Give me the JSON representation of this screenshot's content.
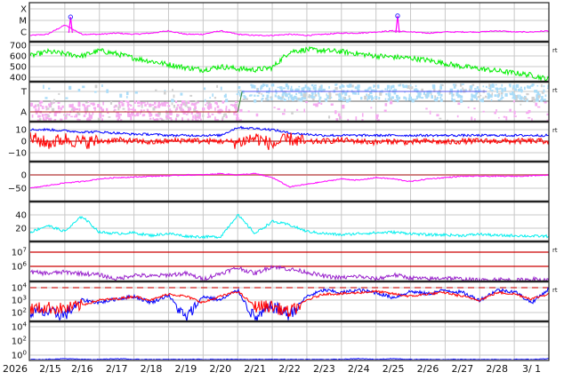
{
  "chart_data": [
    {
      "type": "line",
      "panel": "xray",
      "x_axis": {
        "year_label": "2026",
        "start": "2/15",
        "end": "3/2",
        "day_labels": [
          "2/15",
          "2/16",
          "2/17",
          "2/18",
          "2/19",
          "2/20",
          "2/21",
          "2/22",
          "2/23",
          "2/24",
          "2/25",
          "2/26",
          "2/27",
          "2/28",
          "3/ 1"
        ]
      },
      "yticks": [
        {
          "label": "X",
          "value": -4
        },
        {
          "label": "M",
          "value": -5
        },
        {
          "label": "C",
          "value": -6
        }
      ],
      "sample_interval_hours": 12,
      "series": [
        {
          "color": "#ff00ff",
          "values": [
            -6.3,
            -6.2,
            -5.4,
            -6.2,
            -6.2,
            -6.1,
            -6.2,
            -6.1,
            -5.9,
            -6.2,
            -6.2,
            -5.9,
            -6.2,
            -6.3,
            -6.3,
            -6.2,
            -6.3,
            -6.2,
            -6.1,
            -6.1,
            -6.0,
            -5.9,
            -6.0,
            -6.1,
            -6.0,
            -6.0,
            -6.0,
            -5.9,
            -6.0,
            -6.0,
            -5.9
          ]
        }
      ],
      "flare_markers": [
        {
          "time": "2/16 04:00",
          "log_flux": -4.7
        },
        {
          "time": "2/25 15:00",
          "log_flux": -4.6
        }
      ]
    },
    {
      "type": "line",
      "panel": "solar-wind-speed",
      "right_label": "rt",
      "yticks": [
        {
          "label": "700",
          "value": 700
        },
        {
          "label": "600",
          "value": 600
        },
        {
          "label": "500",
          "value": 500
        },
        {
          "label": "400",
          "value": 400
        }
      ],
      "series": [
        {
          "color": "#00ee00",
          "values": [
            600,
            640,
            620,
            600,
            650,
            620,
            580,
            550,
            520,
            490,
            470,
            500,
            480,
            470,
            490,
            640,
            660,
            650,
            640,
            620,
            600,
            590,
            580,
            560,
            530,
            500,
            480,
            460,
            440,
            420,
            380
          ]
        }
      ]
    },
    {
      "type": "scatter",
      "panel": "sector",
      "right_label": "rt",
      "yticks": [
        {
          "label": "T",
          "value": 1
        },
        {
          "label": "A",
          "value": -1
        }
      ],
      "sectors": [
        {
          "start": "2/15",
          "end": "2/21",
          "polarity": "A"
        },
        {
          "start": "2/21",
          "end": "3/2",
          "polarity": "T"
        }
      ],
      "colors": {
        "away": "#f5aaf0",
        "toward": "#aadcf8",
        "line_away": "#aa2222",
        "line_toward": "#5555ee",
        "transition": "#338833"
      }
    },
    {
      "type": "line",
      "panel": "imf",
      "right_label": "rt",
      "yticks": [
        {
          "label": "10",
          "value": 10
        },
        {
          "label": "0",
          "value": 0
        },
        {
          "label": "−10",
          "value": -10
        }
      ],
      "series": [
        {
          "color": "#0000ff",
          "values": [
            10,
            10,
            9,
            8,
            8,
            7,
            6,
            6,
            5,
            5,
            5,
            5,
            12,
            11,
            10,
            7,
            6,
            5,
            5,
            5,
            5,
            5,
            5,
            5,
            5,
            5,
            5,
            5,
            5,
            5,
            5
          ]
        },
        {
          "color": "#ff0000",
          "values": [
            3,
            -2,
            2,
            -1,
            0,
            1,
            0,
            -1,
            0,
            1,
            0,
            0,
            -1,
            3,
            -3,
            2,
            -1,
            0,
            1,
            0,
            -1,
            0,
            -1,
            0,
            -1,
            0,
            0,
            0,
            0,
            0,
            0
          ]
        }
      ]
    },
    {
      "type": "line",
      "panel": "dst",
      "yticks": [
        {
          "label": "0",
          "value": 0
        },
        {
          "label": "−50",
          "value": -50
        }
      ],
      "series": [
        {
          "color": "#ff00ff",
          "values": [
            -50,
            -40,
            -30,
            -25,
            -15,
            -10,
            -8,
            -5,
            -3,
            0,
            0,
            5,
            0,
            5,
            -10,
            -45,
            -35,
            -25,
            -15,
            -20,
            -10,
            -15,
            -25,
            -15,
            -10,
            -5,
            -5,
            -5,
            -5,
            -3,
            0
          ]
        }
      ]
    },
    {
      "type": "line",
      "panel": "density",
      "yticks": [
        {
          "label": "40",
          "value": 40
        },
        {
          "label": "20",
          "value": 20
        }
      ],
      "series": [
        {
          "color": "#00eeee",
          "values": [
            14,
            24,
            15,
            38,
            14,
            12,
            13,
            9,
            12,
            8,
            7,
            7,
            40,
            12,
            30,
            25,
            15,
            12,
            10,
            12,
            13,
            14,
            12,
            10,
            10,
            9,
            11,
            9,
            9,
            8,
            8
          ]
        }
      ]
    },
    {
      "type": "line",
      "panel": "electrons",
      "right_label": "rt",
      "scale": "log",
      "yticks": [
        {
          "label": "10",
          "exp": "7",
          "value": 7
        },
        {
          "label": "10",
          "exp": "6",
          "value": 6
        }
      ],
      "thresholds": [
        {
          "value": 7,
          "color": "#cc0000"
        },
        {
          "value": 6,
          "color": "#cc0000"
        }
      ],
      "series": [
        {
          "color": "#9922cc",
          "values": [
            5.6,
            5.5,
            5.6,
            5.5,
            5.4,
            5.1,
            5.4,
            5.3,
            5.4,
            5.5,
            5.1,
            5.5,
            5.9,
            5.5,
            6.0,
            5.8,
            5.6,
            5.3,
            5.2,
            5.3,
            5.1,
            5.4,
            5.2,
            5.1,
            5.2,
            5.1,
            5.0,
            5.1,
            5.0,
            5.1,
            5.0
          ]
        }
      ]
    },
    {
      "type": "line",
      "panel": "protons",
      "right_label": "rt",
      "scale": "log",
      "yticks": [
        {
          "label": "10",
          "exp": "4",
          "value": 4
        },
        {
          "label": "10",
          "exp": "3",
          "value": 3
        },
        {
          "label": "10",
          "exp": "2",
          "value": 2
        }
      ],
      "thresholds": [
        {
          "value": 4,
          "color": "#cc2222",
          "dashed": true
        }
      ],
      "series": [
        {
          "color": "#0000ff",
          "values": [
            2.0,
            2.0,
            1.8,
            3.0,
            2.8,
            3.1,
            3.3,
            2.8,
            3.4,
            1.5,
            3.3,
            3.0,
            3.8,
            1.5,
            2.5,
            1.8,
            3.3,
            3.8,
            3.6,
            3.8,
            3.6,
            3.2,
            3.7,
            3.5,
            3.8,
            3.6,
            3.0,
            3.8,
            3.7,
            2.8,
            3.9
          ]
        },
        {
          "color": "#ff0000",
          "values": [
            2.3,
            2.4,
            2.3,
            2.6,
            3.0,
            3.1,
            3.3,
            3.0,
            3.5,
            3.3,
            2.8,
            3.3,
            3.7,
            2.5,
            2.5,
            2.0,
            3.0,
            3.5,
            3.5,
            3.6,
            3.7,
            3.5,
            3.3,
            3.5,
            3.6,
            3.3,
            3.0,
            3.6,
            3.5,
            3.1,
            3.5
          ]
        }
      ]
    },
    {
      "type": "line",
      "panel": "high-energy",
      "scale": "log",
      "yticks": [
        {
          "label": "10",
          "exp": "4",
          "value": 4
        },
        {
          "label": "10",
          "exp": "2",
          "value": 2
        },
        {
          "label": "10",
          "exp": "0",
          "value": 0
        }
      ],
      "series": [
        {
          "color": "#0000ff",
          "values": [
            -0.6,
            -0.6,
            -0.5,
            -0.6,
            -0.6,
            -0.5,
            -0.6,
            -0.6,
            -0.6,
            -0.6,
            -0.6,
            -0.6,
            -0.6,
            -0.6,
            -0.6,
            -0.6,
            -0.6,
            -0.6,
            -0.6,
            -0.5,
            -0.6,
            -0.5,
            -0.6,
            -0.6,
            -0.6,
            -0.6,
            -0.6,
            -0.6,
            -0.6,
            -0.6,
            -0.5
          ]
        }
      ]
    }
  ]
}
